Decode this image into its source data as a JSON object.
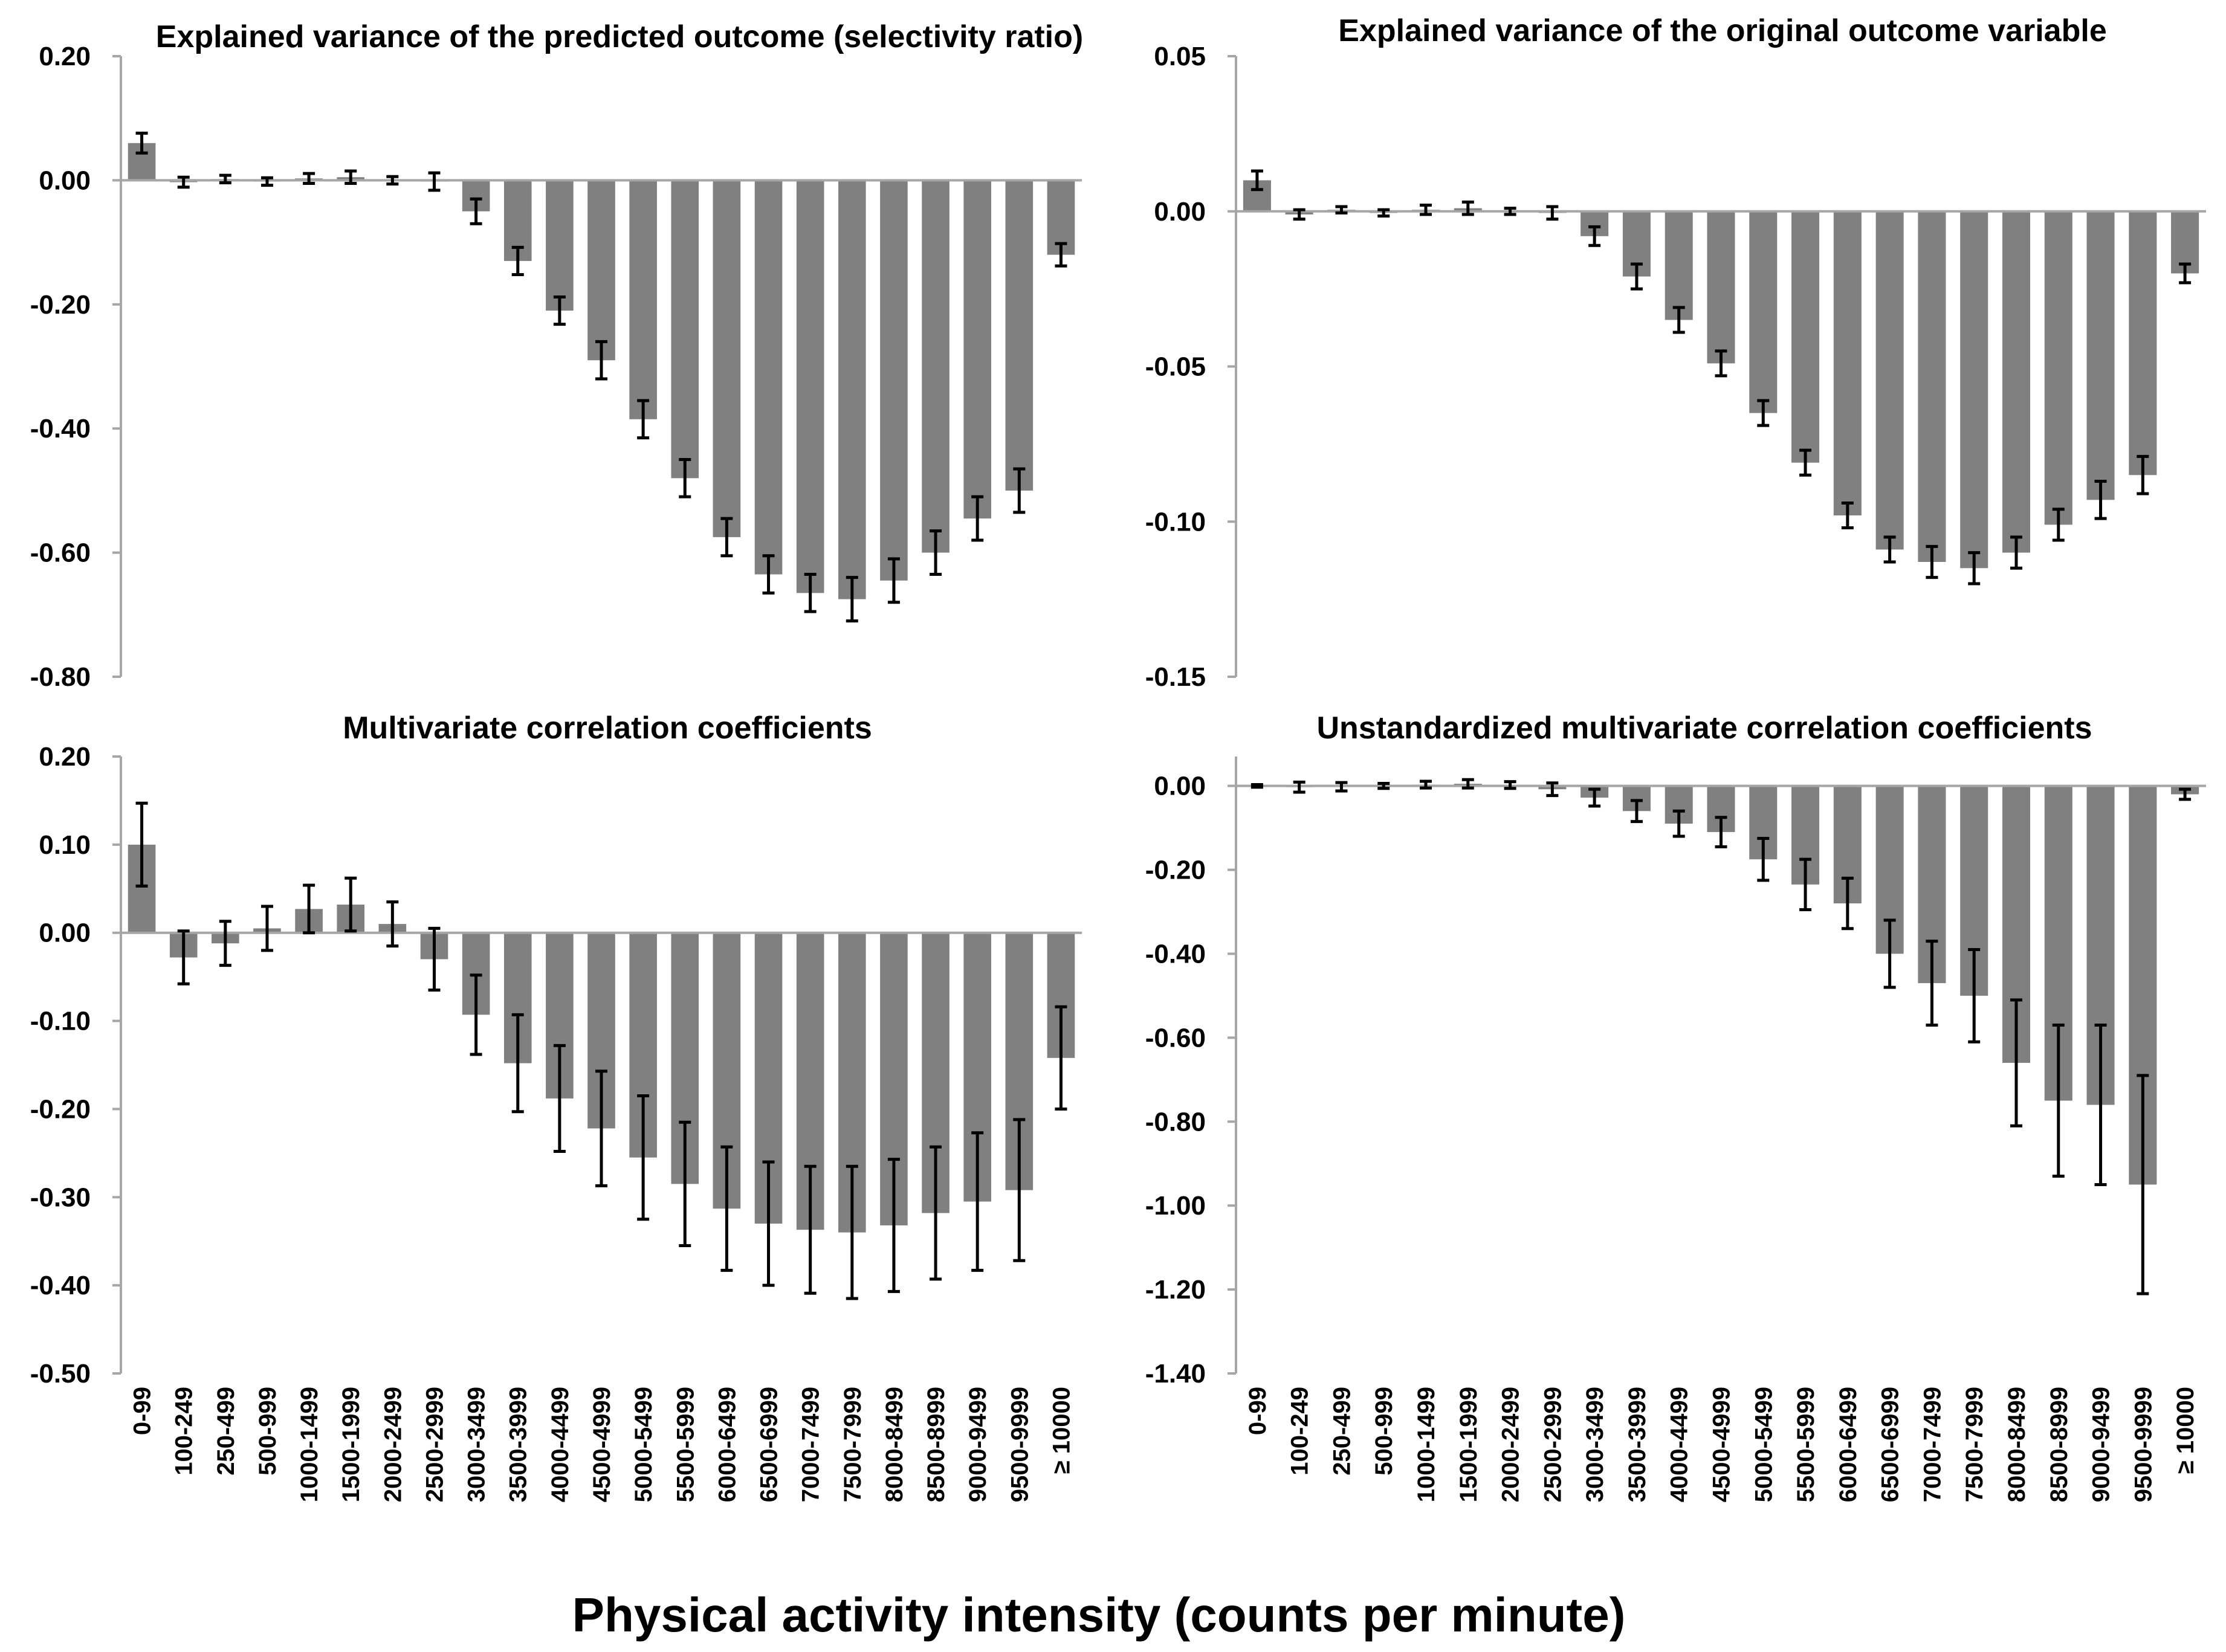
{
  "xlabel": "Physical activity intensity (counts per minute)",
  "colors": {
    "bar": "#808080",
    "axis": "#a6a6a6",
    "error": "#000000"
  },
  "categories": [
    "0-99",
    "100-249",
    "250-499",
    "500-999",
    "1000-1499",
    "1500-1999",
    "2000-2499",
    "2500-2999",
    "3000-3499",
    "3500-3999",
    "4000-4499",
    "4500-4999",
    "5000-5499",
    "5500-5999",
    "6000-6499",
    "6500-6999",
    "7000-7499",
    "7500-7999",
    "8000-8499",
    "8500-8999",
    "9000-9499",
    "9500-9999",
    "≥ 10000"
  ],
  "chart_data": [
    {
      "type": "bar",
      "title": "Explained variance of the predicted outcome (selectivity ratio)",
      "ylim": [
        -0.8,
        0.2
      ],
      "yticks": [
        0.2,
        0.0,
        -0.2,
        -0.4,
        -0.6,
        -0.8
      ],
      "ytick_labels": [
        "0.20",
        "0.00",
        "-0.20",
        "-0.40",
        "-0.60",
        "-0.80"
      ],
      "values": [
        0.06,
        -0.003,
        0.002,
        -0.002,
        0.003,
        0.005,
        0.0,
        -0.002,
        -0.05,
        -0.13,
        -0.21,
        -0.29,
        -0.385,
        -0.48,
        -0.575,
        -0.635,
        -0.665,
        -0.675,
        -0.645,
        -0.6,
        -0.545,
        -0.5,
        -0.12
      ],
      "errors": [
        0.016,
        0.008,
        0.006,
        0.006,
        0.008,
        0.01,
        0.006,
        0.014,
        0.02,
        0.022,
        0.022,
        0.03,
        0.03,
        0.03,
        0.03,
        0.03,
        0.03,
        0.035,
        0.035,
        0.035,
        0.035,
        0.035,
        0.018
      ]
    },
    {
      "type": "bar",
      "title": "Explained variance of the original outcome variable",
      "ylim": [
        -0.15,
        0.05
      ],
      "yticks": [
        0.05,
        0.0,
        -0.05,
        -0.1,
        -0.15
      ],
      "ytick_labels": [
        "0.05",
        "0.00",
        "-0.05",
        "-0.10",
        "-0.15"
      ],
      "values": [
        0.01,
        -0.001,
        0.0005,
        -0.0005,
        0.0005,
        0.001,
        0.0,
        -0.0005,
        -0.008,
        -0.021,
        -0.035,
        -0.049,
        -0.065,
        -0.081,
        -0.098,
        -0.109,
        -0.113,
        -0.115,
        -0.11,
        -0.101,
        -0.093,
        -0.085,
        -0.02
      ],
      "errors": [
        0.003,
        0.0015,
        0.001,
        0.001,
        0.0015,
        0.002,
        0.001,
        0.002,
        0.003,
        0.004,
        0.004,
        0.004,
        0.004,
        0.004,
        0.004,
        0.004,
        0.005,
        0.005,
        0.005,
        0.005,
        0.006,
        0.006,
        0.003
      ]
    },
    {
      "type": "bar",
      "title": "Multivariate correlation coefficients",
      "ylim": [
        -0.5,
        0.2
      ],
      "yticks": [
        0.2,
        0.1,
        0.0,
        -0.1,
        -0.2,
        -0.3,
        -0.4,
        -0.5
      ],
      "ytick_labels": [
        "0.20",
        "0.10",
        "0.00",
        "-0.10",
        "-0.20",
        "-0.30",
        "-0.40",
        "-0.50"
      ],
      "values": [
        0.1,
        -0.028,
        -0.012,
        0.005,
        0.027,
        0.032,
        0.01,
        -0.03,
        -0.093,
        -0.148,
        -0.188,
        -0.222,
        -0.255,
        -0.285,
        -0.313,
        -0.33,
        -0.337,
        -0.34,
        -0.332,
        -0.318,
        -0.305,
        -0.292,
        -0.142
      ],
      "errors": [
        0.047,
        0.03,
        0.025,
        0.025,
        0.027,
        0.03,
        0.025,
        0.035,
        0.045,
        0.055,
        0.06,
        0.065,
        0.07,
        0.07,
        0.07,
        0.07,
        0.072,
        0.075,
        0.075,
        0.075,
        0.078,
        0.08,
        0.058
      ]
    },
    {
      "type": "bar",
      "title": "Unstandardized multivariate correlation coefficients",
      "ylim": [
        -1.4,
        0.07
      ],
      "yticks": [
        0.0,
        -0.2,
        -0.4,
        -0.6,
        -0.8,
        -1.0,
        -1.2,
        -1.4
      ],
      "ytick_labels": [
        "0.00",
        "-0.20",
        "-0.40",
        "-0.60",
        "-0.80",
        "-1.00",
        "-1.20",
        "-1.40"
      ],
      "values": [
        0.0,
        -0.003,
        -0.002,
        0.0,
        0.003,
        0.005,
        0.002,
        -0.008,
        -0.028,
        -0.06,
        -0.09,
        -0.11,
        -0.175,
        -0.235,
        -0.28,
        -0.4,
        -0.47,
        -0.5,
        -0.66,
        -0.75,
        -0.76,
        -0.95,
        -0.02
      ],
      "errors": [
        0.003,
        0.012,
        0.01,
        0.006,
        0.008,
        0.01,
        0.008,
        0.015,
        0.02,
        0.025,
        0.03,
        0.035,
        0.05,
        0.06,
        0.06,
        0.08,
        0.1,
        0.11,
        0.15,
        0.18,
        0.19,
        0.26,
        0.012
      ]
    }
  ]
}
